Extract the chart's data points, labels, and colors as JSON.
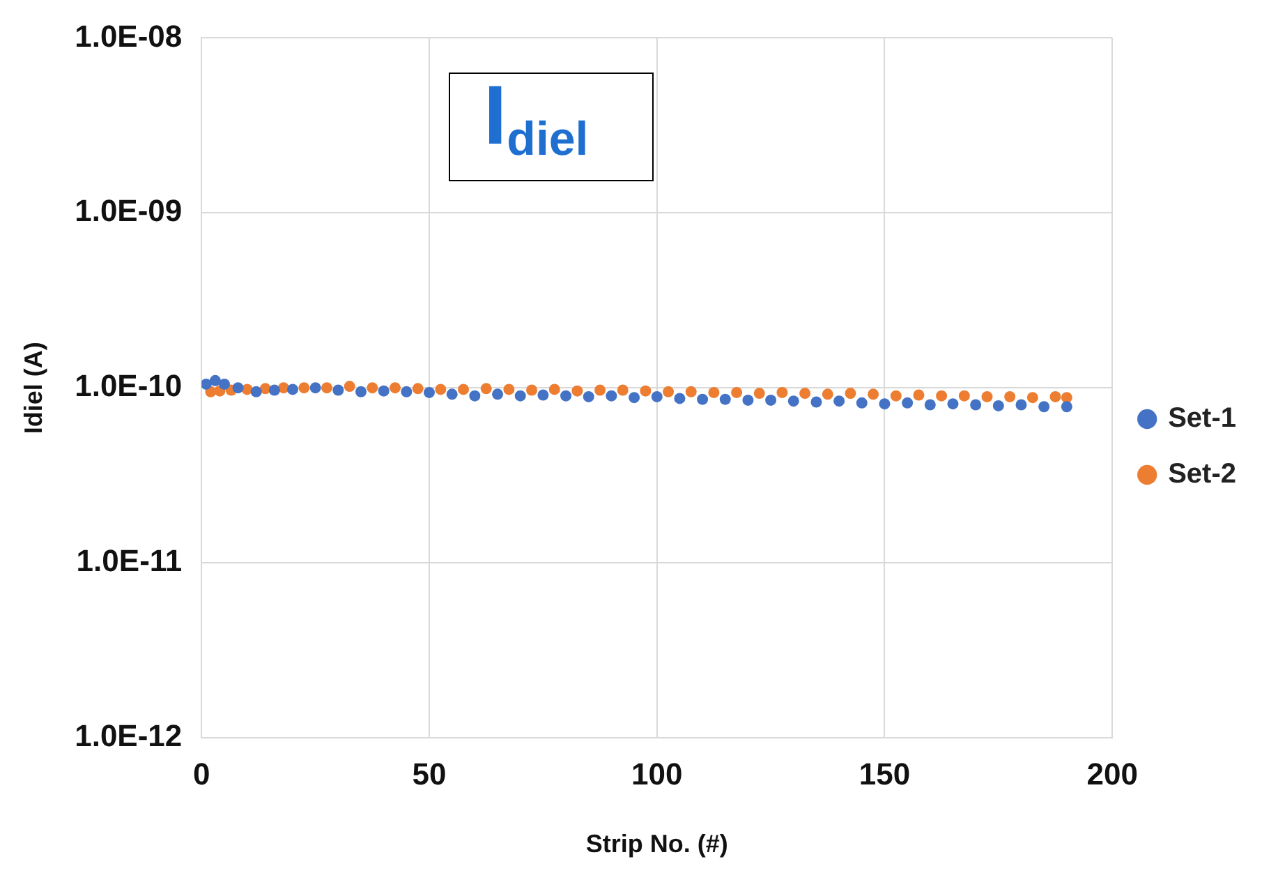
{
  "chart_data": {
    "type": "scatter",
    "xlabel": "Strip No. (#)",
    "ylabel": "Idiel (A)",
    "log": "y",
    "grid": true,
    "legend": "right",
    "marker": "circle",
    "xlim": [
      0,
      200
    ],
    "xticks": [
      0,
      50,
      100,
      150,
      200
    ],
    "ylim": [
      1e-12,
      1e-08
    ],
    "yticks": [
      {
        "value": 1e-12,
        "label": "1.0E-12"
      },
      {
        "value": 1e-11,
        "label": "1.0E-11"
      },
      {
        "value": 1e-10,
        "label": "1.0E-10"
      },
      {
        "value": 1e-09,
        "label": "1.0E-09"
      },
      {
        "value": 1e-08,
        "label": "1.0E-08"
      }
    ],
    "annotations": [
      "I$_{diel}$"
    ],
    "series": [
      {
        "name": "Set-1",
        "color": "#4472c4",
        "x": [
          1,
          3,
          5,
          8,
          12,
          16,
          20,
          25,
          30,
          35,
          40,
          45,
          50,
          55,
          60,
          65,
          70,
          75,
          80,
          85,
          90,
          95,
          100,
          105,
          110,
          115,
          120,
          125,
          130,
          135,
          140,
          145,
          150,
          155,
          160,
          165,
          170,
          175,
          180,
          185,
          190
        ],
        "values": [
          1.05e-10,
          1.1e-10,
          1.05e-10,
          1e-10,
          9.5e-11,
          9.7e-11,
          9.8e-11,
          1e-10,
          9.7e-11,
          9.5e-11,
          9.6e-11,
          9.5e-11,
          9.4e-11,
          9.2e-11,
          9e-11,
          9.2e-11,
          9e-11,
          9.1e-11,
          9e-11,
          8.9e-11,
          9e-11,
          8.8e-11,
          8.9e-11,
          8.7e-11,
          8.6e-11,
          8.6e-11,
          8.5e-11,
          8.5e-11,
          8.4e-11,
          8.3e-11,
          8.4e-11,
          8.2e-11,
          8.1e-11,
          8.2e-11,
          8e-11,
          8.1e-11,
          8e-11,
          7.9e-11,
          8e-11,
          7.8e-11,
          7.8e-11
        ]
      },
      {
        "name": "Set-2",
        "color": "#ed7d31",
        "x": [
          2,
          4,
          6.5,
          10,
          14,
          18,
          22.5,
          27.5,
          32.5,
          37.5,
          42.5,
          47.5,
          52.5,
          57.5,
          62.5,
          67.5,
          72.5,
          77.5,
          82.5,
          87.5,
          92.5,
          97.5,
          102.5,
          107.5,
          112.5,
          117.5,
          122.5,
          127.5,
          132.5,
          137.5,
          142.5,
          147.5,
          152.5,
          157.5,
          162.5,
          167.5,
          172.5,
          177.5,
          182.5,
          187.5,
          190
        ],
        "values": [
          9.5e-11,
          9.6e-11,
          9.7e-11,
          9.8e-11,
          9.9e-11,
          1e-10,
          1e-10,
          1e-10,
          1.02e-10,
          1e-10,
          1e-10,
          9.9e-11,
          9.8e-11,
          9.8e-11,
          9.9e-11,
          9.8e-11,
          9.7e-11,
          9.8e-11,
          9.6e-11,
          9.7e-11,
          9.7e-11,
          9.6e-11,
          9.5e-11,
          9.5e-11,
          9.4e-11,
          9.4e-11,
          9.3e-11,
          9.4e-11,
          9.3e-11,
          9.2e-11,
          9.3e-11,
          9.2e-11,
          9e-11,
          9.1e-11,
          9e-11,
          9e-11,
          8.9e-11,
          8.9e-11,
          8.8e-11,
          8.9e-11,
          8.8e-11
        ]
      }
    ]
  }
}
